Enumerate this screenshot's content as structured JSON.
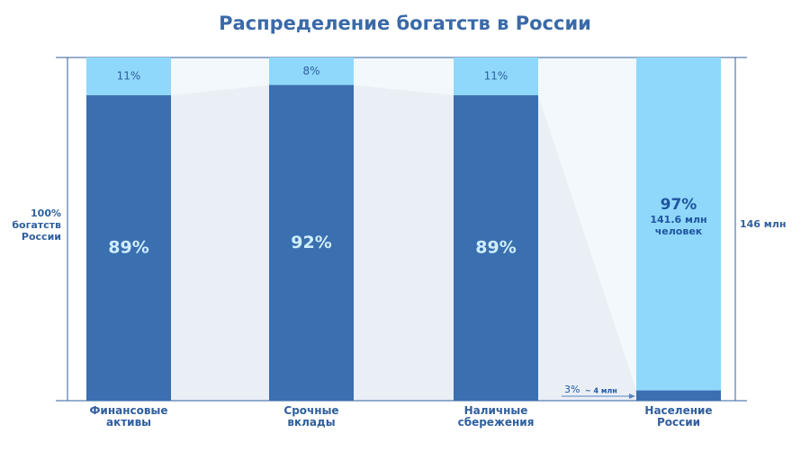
{
  "chart_data": {
    "type": "bar",
    "stacked": true,
    "title": "Распределение богатств в России",
    "categories": [
      "Финансовые активы",
      "Срочные вклады",
      "Наличные сбережения",
      "Население России"
    ],
    "series": [
      {
        "color": "#3a6fb0",
        "values": [
          89,
          92,
          89,
          3
        ],
        "value_labels": [
          "89%",
          "92%",
          "89%",
          "3%"
        ]
      },
      {
        "color": "#8fd8fc",
        "values": [
          11,
          8,
          11,
          97
        ],
        "value_labels": [
          "11%",
          "8%",
          "11%",
          "97%"
        ]
      }
    ],
    "ylim": [
      0,
      100
    ],
    "y_label": "100% богатств России",
    "y2_label": "146 млн",
    "annotations": [
      "141.6 млн",
      "человек",
      "~ 4 млн"
    ]
  }
}
